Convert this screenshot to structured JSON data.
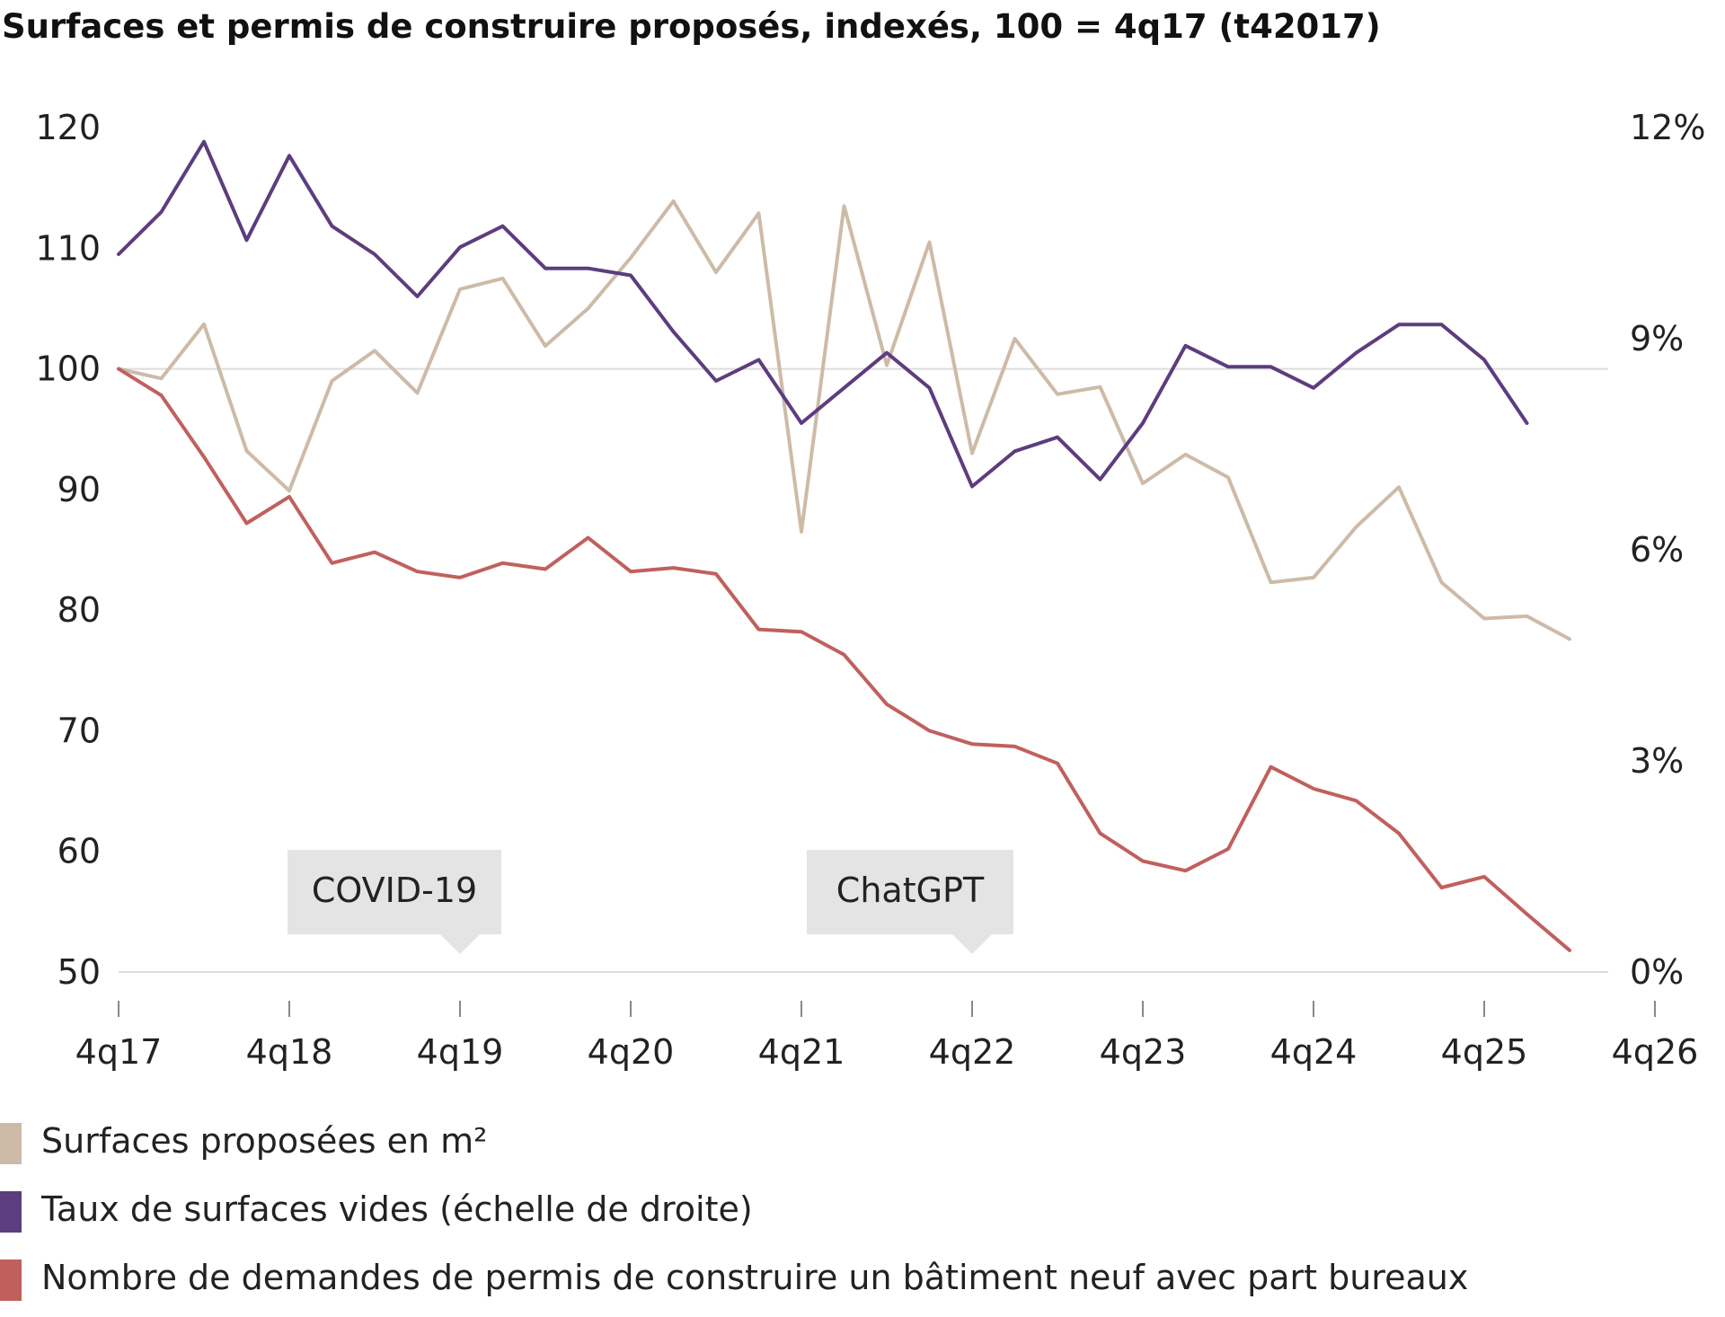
{
  "chart_data": {
    "type": "line",
    "title": "Surfaces et permis de construire proposés, indexés, 100 = 4q17 (t42017)",
    "x_start_quarter": 0,
    "x_ticks": [
      "4q17",
      "4q18",
      "4q19",
      "4q20",
      "4q21",
      "4q22",
      "4q23",
      "4q24",
      "4q25",
      "4q26"
    ],
    "y_left": {
      "range": [
        50,
        120
      ],
      "ticks": [
        "50",
        "60",
        "70",
        "80",
        "90",
        "100",
        "110",
        "120"
      ],
      "tick_values": [
        50,
        60,
        70,
        80,
        90,
        100,
        110,
        120
      ]
    },
    "y_right": {
      "range": [
        0,
        12
      ],
      "ticks": [
        "0%",
        "3%",
        "6%",
        "9%",
        "12%"
      ],
      "tick_values": [
        0,
        3,
        6,
        9,
        12
      ]
    },
    "reference_line": 100,
    "series": [
      {
        "name": "Surfaces proposées en m²",
        "axis": "left",
        "color": "#cdbba7",
        "values": [
          100,
          99.2,
          103.7,
          93.2,
          89.9,
          99.0,
          101.5,
          98.0,
          106.6,
          107.5,
          101.9,
          105.0,
          109.2,
          113.9,
          108.0,
          112.9,
          86.5,
          113.5,
          100.3,
          110.5,
          93.0,
          102.5,
          97.9,
          98.5,
          90.5,
          92.9,
          91.0,
          82.3,
          82.7,
          86.9,
          90.2,
          82.3,
          79.3,
          79.5,
          77.6
        ]
      },
      {
        "name": "Taux de surfaces vides (échelle de droite)",
        "axis": "right",
        "color": "#5c3d7e",
        "values": [
          10.2,
          10.8,
          11.8,
          10.4,
          11.6,
          10.6,
          10.2,
          9.6,
          10.3,
          10.6,
          10.0,
          10.0,
          9.9,
          9.1,
          8.4,
          8.7,
          7.8,
          8.3,
          8.8,
          8.3,
          6.9,
          7.4,
          7.6,
          7.0,
          7.8,
          8.9,
          8.6,
          8.6,
          8.3,
          8.8,
          9.2,
          9.2,
          8.7,
          7.8
        ]
      },
      {
        "name": "Nombre de demandes de permis de construire un bâtiment neuf avec part bureaux",
        "axis": "left",
        "color": "#c0605d",
        "values": [
          100,
          97.8,
          92.7,
          87.2,
          89.4,
          83.9,
          84.8,
          83.2,
          82.7,
          83.9,
          83.4,
          86.0,
          83.2,
          83.5,
          83.0,
          78.4,
          78.2,
          76.3,
          72.2,
          70.0,
          68.9,
          68.7,
          67.3,
          61.5,
          59.2,
          58.4,
          60.2,
          67.0,
          65.2,
          64.2,
          61.5,
          57.0,
          57.9,
          54.8,
          51.8
        ]
      }
    ],
    "annotations": [
      {
        "label": "COVID-19",
        "quarter": 8
      },
      {
        "label": "ChatGPT",
        "quarter": 20
      }
    ],
    "legend_position": "bottom-left",
    "grid": false
  }
}
